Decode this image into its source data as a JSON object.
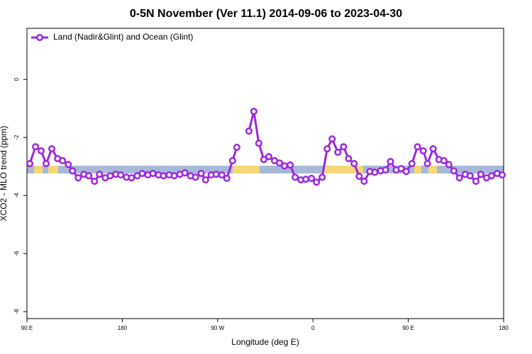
{
  "chart_data": {
    "type": "line",
    "title": "0-5N November (Ver 11.1)   2014-09-06 to 2023-04-30",
    "x_label": "Longitude (deg E)",
    "y_label": "XCO2 - MLO trend (ppm)",
    "xlim": [
      90,
      540
    ],
    "ylim": [
      -8.24,
      1.76
    ],
    "xticks": [
      {
        "value": 90,
        "label": "90 E"
      },
      {
        "value": 180,
        "label": "180"
      },
      {
        "value": 270,
        "label": "90 W"
      },
      {
        "value": 360,
        "label": "0"
      },
      {
        "value": 450,
        "label": "90 E"
      },
      {
        "value": 540,
        "label": "180"
      }
    ],
    "yticks": [
      0,
      -2,
      -4,
      -6,
      -8
    ],
    "legend": "top-left",
    "x": [
      92.7,
      98.1,
      103.4,
      108.1,
      113.5,
      118.9,
      123.6,
      129.0,
      133.0,
      138.4,
      143.7,
      148.4,
      153.8,
      158.5,
      163.9,
      168.6,
      173.9,
      178.6,
      184.0,
      188.7,
      194.1,
      198.8,
      204.2,
      208.9,
      214.2,
      218.9,
      224.3,
      229.0,
      234.4,
      239.1,
      244.5,
      249.2,
      254.5,
      258.6,
      263.9,
      268.6,
      274.0,
      278.7,
      284.1,
      288.1,
      292.0,
      299.5,
      304.2,
      308.9,
      313.6,
      318.3,
      323.7,
      328.4,
      333.1,
      338.5,
      343.2,
      348.6,
      353.3,
      358.6,
      363.3,
      368.7,
      373.4,
      378.1,
      383.5,
      388.9,
      393.6,
      398.9,
      403.6,
      408.3,
      413.7,
      418.4,
      423.8,
      428.5,
      433.2,
      438.6,
      443.3,
      448.0,
      453.4,
      458.7,
      464.1,
      468.1,
      473.5,
      478.9,
      483.6,
      488.3,
      493.0,
      498.3,
      503.7,
      508.4,
      513.8,
      518.5,
      523.9,
      528.6,
      533.9,
      538.6
    ],
    "series": [
      {
        "name": "Land (Nadir&Glint) and Ocean (Glint)",
        "color": "#9b27e0",
        "values": [
          -2.9,
          -2.32,
          -2.46,
          -2.9,
          -2.39,
          -2.73,
          -2.8,
          -2.93,
          -3.15,
          -3.39,
          -3.27,
          -3.32,
          -3.51,
          -3.27,
          -3.39,
          -3.32,
          -3.27,
          -3.29,
          -3.37,
          -3.39,
          -3.32,
          -3.24,
          -3.29,
          -3.24,
          -3.29,
          -3.32,
          -3.29,
          -3.32,
          -3.27,
          -3.22,
          -3.32,
          -3.37,
          -3.24,
          -3.46,
          -3.29,
          -3.27,
          -3.29,
          -3.41,
          -2.8,
          -2.34,
          null,
          -1.78,
          -1.1,
          -2.2,
          -2.76,
          -2.66,
          -2.8,
          -2.88,
          -2.98,
          -2.95,
          -3.37,
          -3.46,
          -3.44,
          -3.41,
          -3.54,
          -3.37,
          -2.39,
          -2.05,
          -2.51,
          -2.32,
          -2.73,
          -2.9,
          -3.34,
          -3.51,
          -3.17,
          -3.2,
          -3.15,
          -3.12,
          -2.83,
          -3.12,
          -3.07,
          -3.17,
          -2.9,
          -2.32,
          -2.46,
          -2.9,
          -2.39,
          -2.76,
          -2.8,
          -2.93,
          -3.15,
          -3.39,
          -3.27,
          -3.32,
          -3.51,
          -3.27,
          -3.39,
          -3.32,
          -3.24,
          -3.29
        ]
      }
    ]
  }
}
